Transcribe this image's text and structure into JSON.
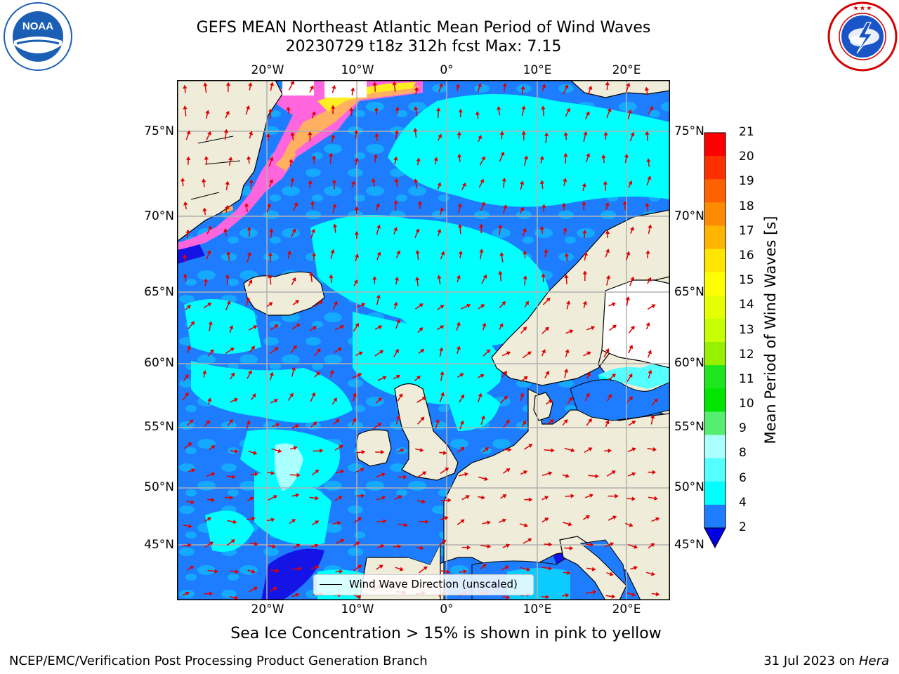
{
  "title_line1": "GEFS MEAN Northeast Atlantic Mean Period of Wind Waves",
  "title_line2": "20230729 t18z 312h fcst   Max: 7.15",
  "logos": {
    "left": {
      "name": "noaa-logo",
      "text": "NOAA",
      "ring_text": "NATIONAL OCEANIC AND ATMOSPHERIC ADMINISTRATION · U.S. DEPARTMENT OF COMMERCE",
      "color": "#1a5fb4"
    },
    "right": {
      "name": "nws-logo",
      "ring_text": "NATIONAL WEATHER SERVICE",
      "color": "#d40000"
    }
  },
  "map": {
    "lon_labels_top": [
      "20°W",
      "10°W",
      "0°",
      "10°E",
      "20°E"
    ],
    "lon_labels_bottom": [
      "20°W",
      "10°W",
      "0°",
      "10°E",
      "20°E"
    ],
    "lat_labels_left": [
      "75°N",
      "70°N",
      "65°N",
      "60°N",
      "55°N",
      "50°N",
      "45°N"
    ],
    "lat_labels_right": [
      "75°N",
      "70°N",
      "65°N",
      "60°N",
      "55°N",
      "50°N",
      "45°N"
    ],
    "colors": {
      "land": "#efecd9",
      "ocean_low": "#1e7dff",
      "ocean_mid": "#00ffff",
      "ocean_light": "#55ffff",
      "ocean_very_low": "#1414e6",
      "ice_pink": "#ff66dd",
      "ice_orange": "#ffb060",
      "ice_yellow": "#ffee22",
      "arrow": "#e00000",
      "grid": "#b0b0b0"
    }
  },
  "legend": {
    "label": "Wind Wave Direction (unscaled)"
  },
  "colorbar": {
    "title": "Mean Period of Wind Waves [s]",
    "ticks": [
      "21",
      "20",
      "19",
      "18",
      "17",
      "16",
      "15",
      "14",
      "13",
      "12",
      "11",
      "10",
      "9",
      "8",
      "6",
      "4",
      "2"
    ],
    "colors": [
      "#ff0000",
      "#ff3000",
      "#ff6000",
      "#ff8c00",
      "#ffb400",
      "#ffe600",
      "#ffff00",
      "#e6ff00",
      "#c8ff00",
      "#96f000",
      "#1ee61e",
      "#00e600",
      "#55ee70",
      "#aaffff",
      "#55ffff",
      "#00ffff",
      "#1e7dff"
    ],
    "extend_color": "#0000e6"
  },
  "footnote": "Sea Ice Concentration > 15% is shown in pink to yellow",
  "credit_left": "NCEP/EMC/Verification Post Processing Product Generation Branch",
  "credit_right_date": "31 Jul 2023 on ",
  "credit_right_host": "Hera"
}
